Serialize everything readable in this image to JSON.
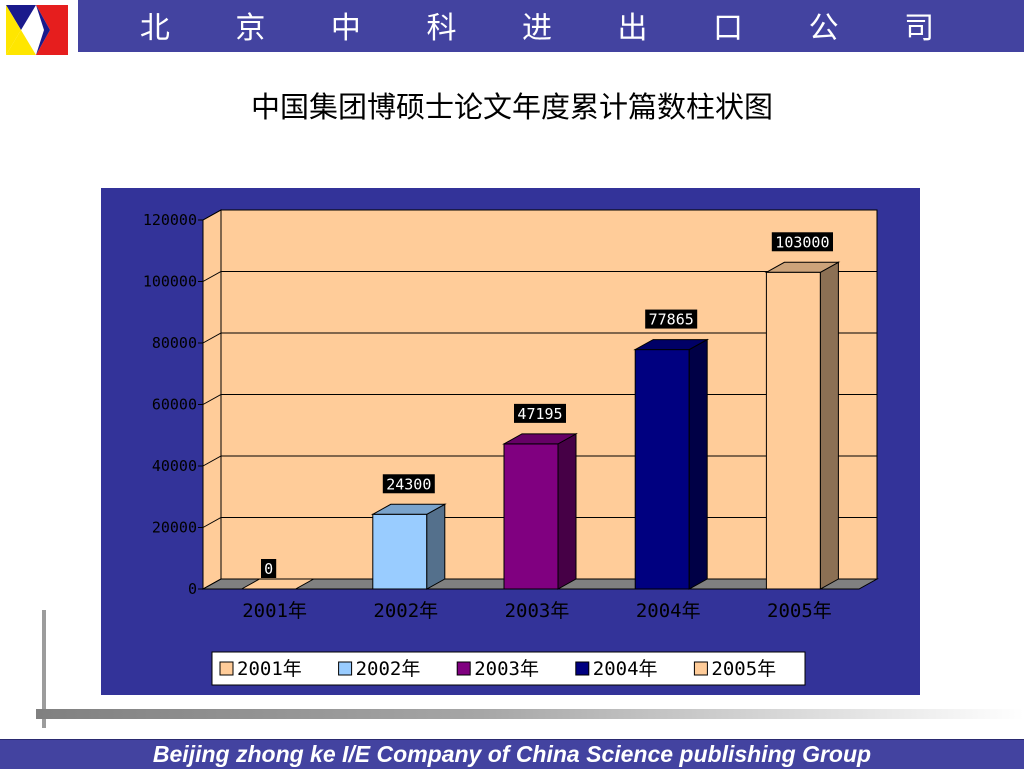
{
  "header": {
    "company_name": "北 京 中 科 进 出 口 公 司"
  },
  "slide": {
    "title": "中国集团博硕士论文年度累计篇数柱状图"
  },
  "footer": {
    "text": "Beijing  zhong ke I/E Company of China Science publishing Group"
  },
  "colors": {
    "header_bar": "#4343a0",
    "chart_panel": "#333399",
    "plot_area": "#ffcc99"
  },
  "chart_data": {
    "type": "bar",
    "title": "",
    "xlabel": "",
    "ylabel": "",
    "categories": [
      "2001年",
      "2002年",
      "2003年",
      "2004年",
      "2005年"
    ],
    "values": [
      0,
      24300,
      47195,
      77865,
      103000
    ],
    "data_labels": [
      "0",
      "24300",
      "47195",
      "77865",
      "103000"
    ],
    "bar_colors": [
      "#ffcc99",
      "#99ccff",
      "#800080",
      "#000080",
      "#ffcc99"
    ],
    "ylim": [
      0,
      120000
    ],
    "yticks": [
      0,
      20000,
      40000,
      60000,
      80000,
      100000,
      120000
    ],
    "ytick_labels": [
      "0",
      "20000",
      "40000",
      "60000",
      "80000",
      "100000",
      "120000"
    ],
    "grid": true,
    "legend": {
      "placement": "bottom",
      "entries": [
        "2001年",
        "2002年",
        "2003年",
        "2004年",
        "2005年"
      ]
    }
  }
}
